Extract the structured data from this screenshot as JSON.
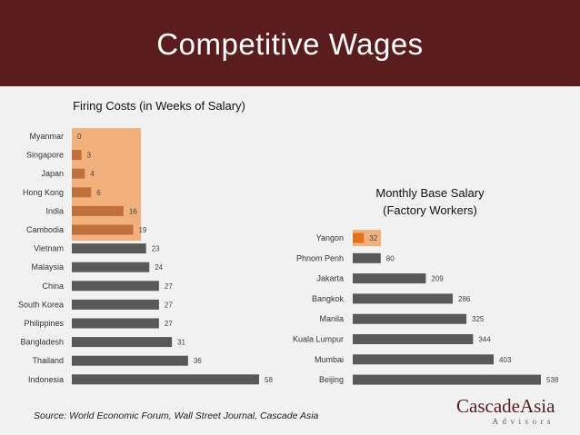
{
  "slide": {
    "title": "Competitive Wages",
    "source": "Source: World Economic Forum, Wall Street Journal, Cascade Asia"
  },
  "logo": {
    "main": "CascadeAsia",
    "sub": "Advisors"
  },
  "colors": {
    "header": "#5a1c1c",
    "bar_gray": "#595959",
    "bar_orange_dark": "#c0703a",
    "bar_orange_bright": "#e2731c",
    "highlight": "#f1b07c"
  },
  "chart_data": [
    {
      "type": "bar",
      "orientation": "horizontal",
      "title": "Firing Costs (in Weeks of Salary)",
      "categories": [
        "Myanmar",
        "Singapore",
        "Japan",
        "Hong Kong",
        "India",
        "Cambodia",
        "Vietnam",
        "Malaysia",
        "China",
        "South Korea",
        "Philippines",
        "Bangladesh",
        "Thailand",
        "Indonesia"
      ],
      "values": [
        0,
        3,
        4,
        6,
        16,
        19,
        23,
        24,
        27,
        27,
        27,
        31,
        36,
        58
      ],
      "highlighted_categories": [
        "Myanmar",
        "Singapore",
        "Japan",
        "Hong Kong",
        "India",
        "Cambodia"
      ],
      "grid": false,
      "legend": "none"
    },
    {
      "type": "bar",
      "orientation": "horizontal",
      "title": "Monthly Base Salary (Factory Workers)",
      "categories": [
        "Yangon",
        "Phnom Penh",
        "Jakarta",
        "Bangkok",
        "Manila",
        "Kuala Lumpur",
        "Mumbai",
        "Beijing"
      ],
      "values": [
        32,
        80,
        209,
        286,
        325,
        344,
        403,
        538
      ],
      "highlighted_categories": [
        "Yangon"
      ],
      "grid": false,
      "legend": "none"
    }
  ]
}
